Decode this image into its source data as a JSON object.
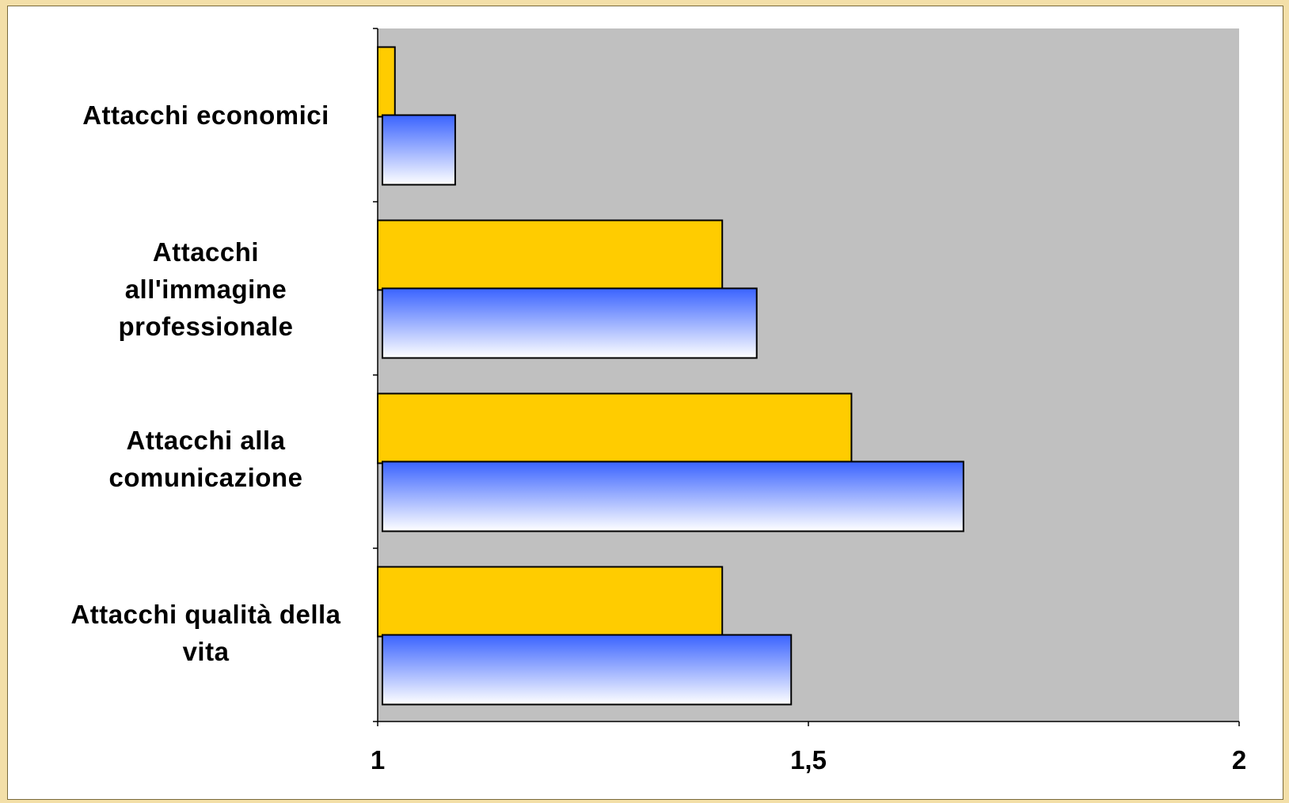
{
  "chart_data": {
    "type": "bar",
    "orientation": "horizontal",
    "categories": [
      "Attacchi economici",
      "Attacchi all'immagine professionale",
      "Attacchi alla comunicazione",
      "Attacchi qualità della vita"
    ],
    "category_labels": [
      "Attacchi economici",
      "Attacchi\nall'immagine\nprofessionale",
      "Attacchi alla\ncomunicazione",
      "Attacchi qualità della\nvita"
    ],
    "series": [
      {
        "color": "#ffcc00",
        "values": [
          1.02,
          1.4,
          1.55,
          1.4
        ]
      },
      {
        "color_top": "#3a63ff",
        "color_bottom": "#ffffff",
        "values": [
          1.09,
          1.44,
          1.68,
          1.48
        ]
      }
    ],
    "xlim": [
      1,
      2
    ],
    "xticks": [
      1,
      1.5,
      2
    ],
    "xtick_labels": [
      "1",
      "1,5",
      "2"
    ],
    "plot_background": "#c0c0c0",
    "grid": false,
    "legend": "none",
    "title": "",
    "xlabel": "",
    "ylabel": ""
  }
}
